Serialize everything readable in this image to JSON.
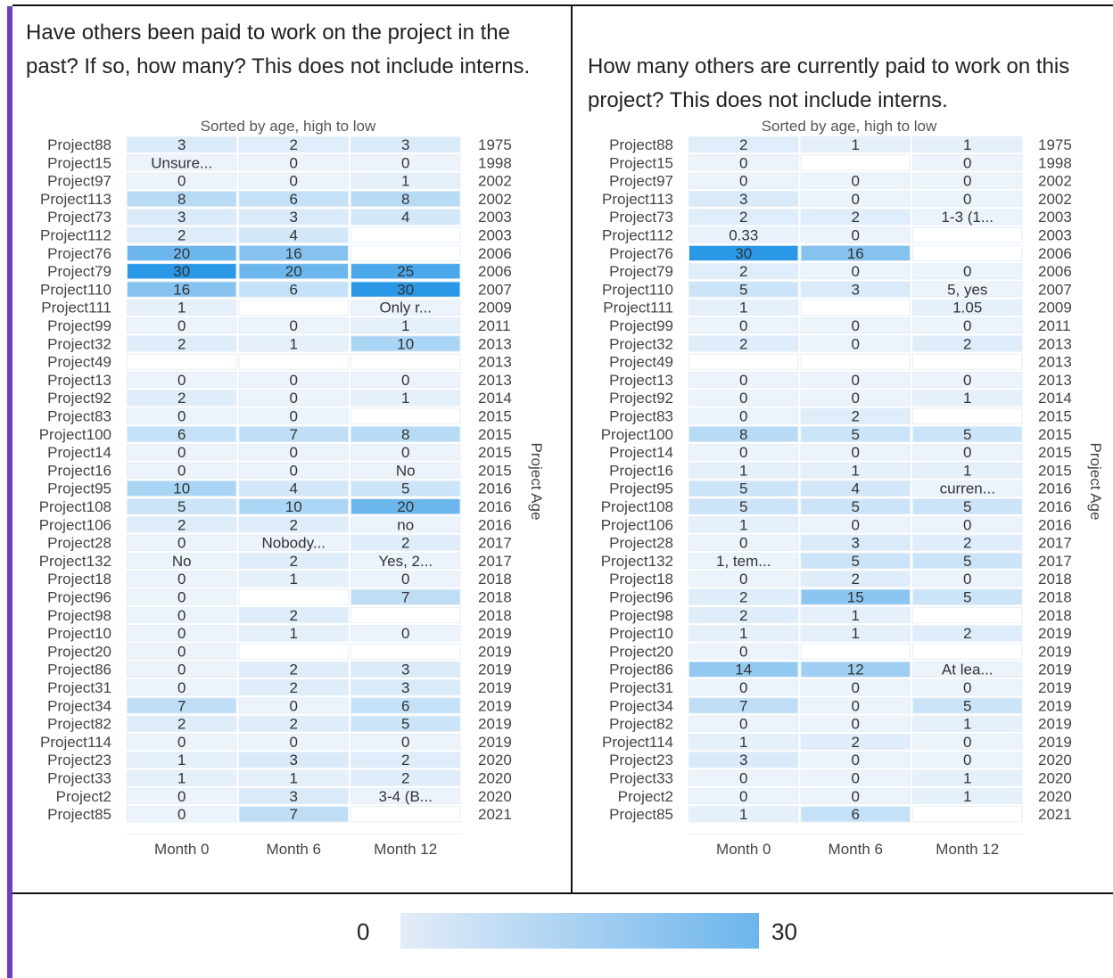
{
  "legend": {
    "min_label": "0",
    "max_label": "30",
    "color_low": "#e3ecf8",
    "color_high": "#3aa0ea",
    "accent": "#6a3fc1"
  },
  "chart_data": [
    {
      "type": "heatmap",
      "question": "Have others been paid to work on the project in the past? If so, how many? This does not include interns.",
      "subtitle": "Sorted by age, high to low",
      "right_axis_label": "Project Age",
      "columns": [
        "Month 0",
        "Month 6",
        "Month 12"
      ],
      "range": [
        0,
        30
      ],
      "rows": [
        {
          "project": "Project88",
          "age": "1975",
          "cells": [
            "3",
            "2",
            "3"
          ]
        },
        {
          "project": "Project15",
          "age": "1998",
          "cells": [
            "Unsure...",
            "0",
            "0"
          ]
        },
        {
          "project": "Project97",
          "age": "2002",
          "cells": [
            "0",
            "0",
            "1"
          ]
        },
        {
          "project": "Project113",
          "age": "2002",
          "cells": [
            "8",
            "6",
            "8"
          ]
        },
        {
          "project": "Project73",
          "age": "2003",
          "cells": [
            "3",
            "3",
            "4"
          ]
        },
        {
          "project": "Project112",
          "age": "2003",
          "cells": [
            "2",
            "4",
            ""
          ]
        },
        {
          "project": "Project76",
          "age": "2006",
          "cells": [
            "20",
            "16",
            ""
          ]
        },
        {
          "project": "Project79",
          "age": "2006",
          "cells": [
            "30",
            "20",
            "25"
          ]
        },
        {
          "project": "Project110",
          "age": "2007",
          "cells": [
            "16",
            "6",
            "30"
          ]
        },
        {
          "project": "Project111",
          "age": "2009",
          "cells": [
            "1",
            "",
            "Only r..."
          ]
        },
        {
          "project": "Project99",
          "age": "2011",
          "cells": [
            "0",
            "0",
            "1"
          ]
        },
        {
          "project": "Project32",
          "age": "2013",
          "cells": [
            "2",
            "1",
            "10"
          ]
        },
        {
          "project": "Project49",
          "age": "2013",
          "cells": [
            "",
            "",
            ""
          ]
        },
        {
          "project": "Project13",
          "age": "2013",
          "cells": [
            "0",
            "0",
            "0"
          ]
        },
        {
          "project": "Project92",
          "age": "2014",
          "cells": [
            "2",
            "0",
            "1"
          ]
        },
        {
          "project": "Project83",
          "age": "2015",
          "cells": [
            "0",
            "0",
            ""
          ]
        },
        {
          "project": "Project100",
          "age": "2015",
          "cells": [
            "6",
            "7",
            "8"
          ]
        },
        {
          "project": "Project14",
          "age": "2015",
          "cells": [
            "0",
            "0",
            "0"
          ]
        },
        {
          "project": "Project16",
          "age": "2015",
          "cells": [
            "0",
            "0",
            "No"
          ]
        },
        {
          "project": "Project95",
          "age": "2016",
          "cells": [
            "10",
            "4",
            "5"
          ]
        },
        {
          "project": "Project108",
          "age": "2016",
          "cells": [
            "5",
            "10",
            "20"
          ]
        },
        {
          "project": "Project106",
          "age": "2016",
          "cells": [
            "2",
            "2",
            "no"
          ]
        },
        {
          "project": "Project28",
          "age": "2017",
          "cells": [
            "0",
            "Nobody...",
            "2"
          ]
        },
        {
          "project": "Project132",
          "age": "2017",
          "cells": [
            "No",
            "2",
            "Yes, 2..."
          ]
        },
        {
          "project": "Project18",
          "age": "2018",
          "cells": [
            "0",
            "1",
            "0"
          ]
        },
        {
          "project": "Project96",
          "age": "2018",
          "cells": [
            "0",
            "",
            "7"
          ]
        },
        {
          "project": "Project98",
          "age": "2018",
          "cells": [
            "0",
            "2",
            ""
          ]
        },
        {
          "project": "Project10",
          "age": "2019",
          "cells": [
            "0",
            "1",
            "0"
          ]
        },
        {
          "project": "Project20",
          "age": "2019",
          "cells": [
            "0",
            "",
            ""
          ]
        },
        {
          "project": "Project86",
          "age": "2019",
          "cells": [
            "0",
            "2",
            "3"
          ]
        },
        {
          "project": "Project31",
          "age": "2019",
          "cells": [
            "0",
            "2",
            "3"
          ]
        },
        {
          "project": "Project34",
          "age": "2019",
          "cells": [
            "7",
            "0",
            "6"
          ]
        },
        {
          "project": "Project82",
          "age": "2019",
          "cells": [
            "2",
            "2",
            "5"
          ]
        },
        {
          "project": "Project114",
          "age": "2019",
          "cells": [
            "0",
            "0",
            "0"
          ]
        },
        {
          "project": "Project23",
          "age": "2020",
          "cells": [
            "1",
            "3",
            "2"
          ]
        },
        {
          "project": "Project33",
          "age": "2020",
          "cells": [
            "1",
            "1",
            "2"
          ]
        },
        {
          "project": "Project2",
          "age": "2020",
          "cells": [
            "0",
            "3",
            "3-4 (B..."
          ]
        },
        {
          "project": "Project85",
          "age": "2021",
          "cells": [
            "0",
            "7",
            ""
          ]
        }
      ]
    },
    {
      "type": "heatmap",
      "question": "How many others are currently paid to work on this project? This does not include interns.",
      "subtitle": "Sorted by age, high to low",
      "right_axis_label": "Project Age",
      "columns": [
        "Month 0",
        "Month 6",
        "Month 12"
      ],
      "range": [
        0,
        30
      ],
      "rows": [
        {
          "project": "Project88",
          "age": "1975",
          "cells": [
            "2",
            "1",
            "1"
          ]
        },
        {
          "project": "Project15",
          "age": "1998",
          "cells": [
            "0",
            "",
            "0"
          ]
        },
        {
          "project": "Project97",
          "age": "2002",
          "cells": [
            "0",
            "0",
            "0"
          ]
        },
        {
          "project": "Project113",
          "age": "2002",
          "cells": [
            "3",
            "0",
            "0"
          ]
        },
        {
          "project": "Project73",
          "age": "2003",
          "cells": [
            "2",
            "2",
            "1-3 (1..."
          ]
        },
        {
          "project": "Project112",
          "age": "2003",
          "cells": [
            "0.33",
            "0",
            ""
          ]
        },
        {
          "project": "Project76",
          "age": "2006",
          "cells": [
            "30",
            "16",
            ""
          ]
        },
        {
          "project": "Project79",
          "age": "2006",
          "cells": [
            "2",
            "0",
            "0"
          ]
        },
        {
          "project": "Project110",
          "age": "2007",
          "cells": [
            "5",
            "3",
            "5, yes"
          ]
        },
        {
          "project": "Project111",
          "age": "2009",
          "cells": [
            "1",
            "",
            "1.05"
          ]
        },
        {
          "project": "Project99",
          "age": "2011",
          "cells": [
            "0",
            "0",
            "0"
          ]
        },
        {
          "project": "Project32",
          "age": "2013",
          "cells": [
            "2",
            "0",
            "2"
          ]
        },
        {
          "project": "Project49",
          "age": "2013",
          "cells": [
            "",
            "",
            ""
          ]
        },
        {
          "project": "Project13",
          "age": "2013",
          "cells": [
            "0",
            "0",
            "0"
          ]
        },
        {
          "project": "Project92",
          "age": "2014",
          "cells": [
            "0",
            "0",
            "1"
          ]
        },
        {
          "project": "Project83",
          "age": "2015",
          "cells": [
            "0",
            "2",
            ""
          ]
        },
        {
          "project": "Project100",
          "age": "2015",
          "cells": [
            "8",
            "5",
            "5"
          ]
        },
        {
          "project": "Project14",
          "age": "2015",
          "cells": [
            "0",
            "0",
            "0"
          ]
        },
        {
          "project": "Project16",
          "age": "2015",
          "cells": [
            "1",
            "1",
            "1"
          ]
        },
        {
          "project": "Project95",
          "age": "2016",
          "cells": [
            "5",
            "4",
            "curren..."
          ]
        },
        {
          "project": "Project108",
          "age": "2016",
          "cells": [
            "5",
            "5",
            "5"
          ]
        },
        {
          "project": "Project106",
          "age": "2016",
          "cells": [
            "1",
            "0",
            "0"
          ]
        },
        {
          "project": "Project28",
          "age": "2017",
          "cells": [
            "0",
            "3",
            "2"
          ]
        },
        {
          "project": "Project132",
          "age": "2017",
          "cells": [
            "1, tem...",
            "5",
            "5"
          ]
        },
        {
          "project": "Project18",
          "age": "2018",
          "cells": [
            "0",
            "2",
            "0"
          ]
        },
        {
          "project": "Project96",
          "age": "2018",
          "cells": [
            "2",
            "15",
            "5"
          ]
        },
        {
          "project": "Project98",
          "age": "2018",
          "cells": [
            "2",
            "1",
            ""
          ]
        },
        {
          "project": "Project10",
          "age": "2019",
          "cells": [
            "1",
            "1",
            "2"
          ]
        },
        {
          "project": "Project20",
          "age": "2019",
          "cells": [
            "0",
            "",
            ""
          ]
        },
        {
          "project": "Project86",
          "age": "2019",
          "cells": [
            "14",
            "12",
            "At lea..."
          ]
        },
        {
          "project": "Project31",
          "age": "2019",
          "cells": [
            "0",
            "0",
            "0"
          ]
        },
        {
          "project": "Project34",
          "age": "2019",
          "cells": [
            "7",
            "0",
            "5"
          ]
        },
        {
          "project": "Project82",
          "age": "2019",
          "cells": [
            "0",
            "0",
            "1"
          ]
        },
        {
          "project": "Project114",
          "age": "2019",
          "cells": [
            "1",
            "2",
            "0"
          ]
        },
        {
          "project": "Project23",
          "age": "2020",
          "cells": [
            "3",
            "0",
            "0"
          ]
        },
        {
          "project": "Project33",
          "age": "2020",
          "cells": [
            "0",
            "0",
            "1"
          ]
        },
        {
          "project": "Project2",
          "age": "2020",
          "cells": [
            "0",
            "0",
            "1"
          ]
        },
        {
          "project": "Project85",
          "age": "2021",
          "cells": [
            "1",
            "6",
            ""
          ]
        }
      ]
    }
  ]
}
